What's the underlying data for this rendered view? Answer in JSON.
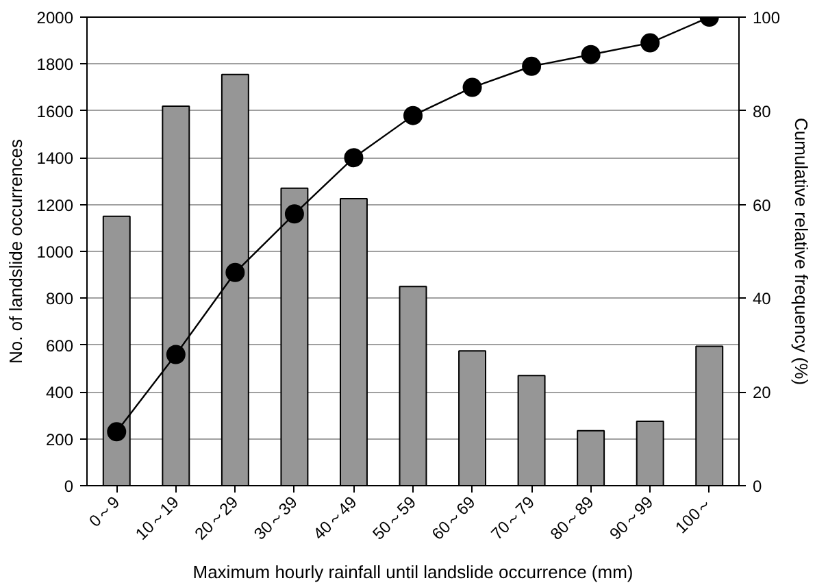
{
  "chart_data": {
    "type": "bar",
    "xlabel": "Maximum hourly rainfall until landslide occurrence (mm)",
    "ylabel": "No. of landslide occurrences",
    "y2label": "Cumulative relative frequency (%)",
    "categories": [
      "0～9",
      "10～19",
      "20～29",
      "30～39",
      "40～49",
      "50～59",
      "60～69",
      "70～79",
      "80～89",
      "90～99",
      "100～"
    ],
    "series": [
      {
        "color": "#969696",
        "values": [
          1150,
          1620,
          1755,
          1270,
          1225,
          850,
          575,
          470,
          235,
          275,
          595
        ]
      },
      {
        "type": "line",
        "axis": "y2",
        "color": "#000000",
        "marker": "circle",
        "values": [
          11.5,
          28,
          45.5,
          58,
          70,
          79,
          85,
          89.5,
          92,
          94.5,
          100
        ]
      }
    ],
    "ylim": [
      0,
      2000
    ],
    "yticks": [
      0,
      200,
      400,
      600,
      800,
      1000,
      1200,
      1400,
      1600,
      1800,
      2000
    ],
    "y2lim": [
      0,
      100
    ],
    "y2ticks": [
      0,
      20,
      40,
      60,
      80,
      100
    ],
    "grid": "y"
  }
}
